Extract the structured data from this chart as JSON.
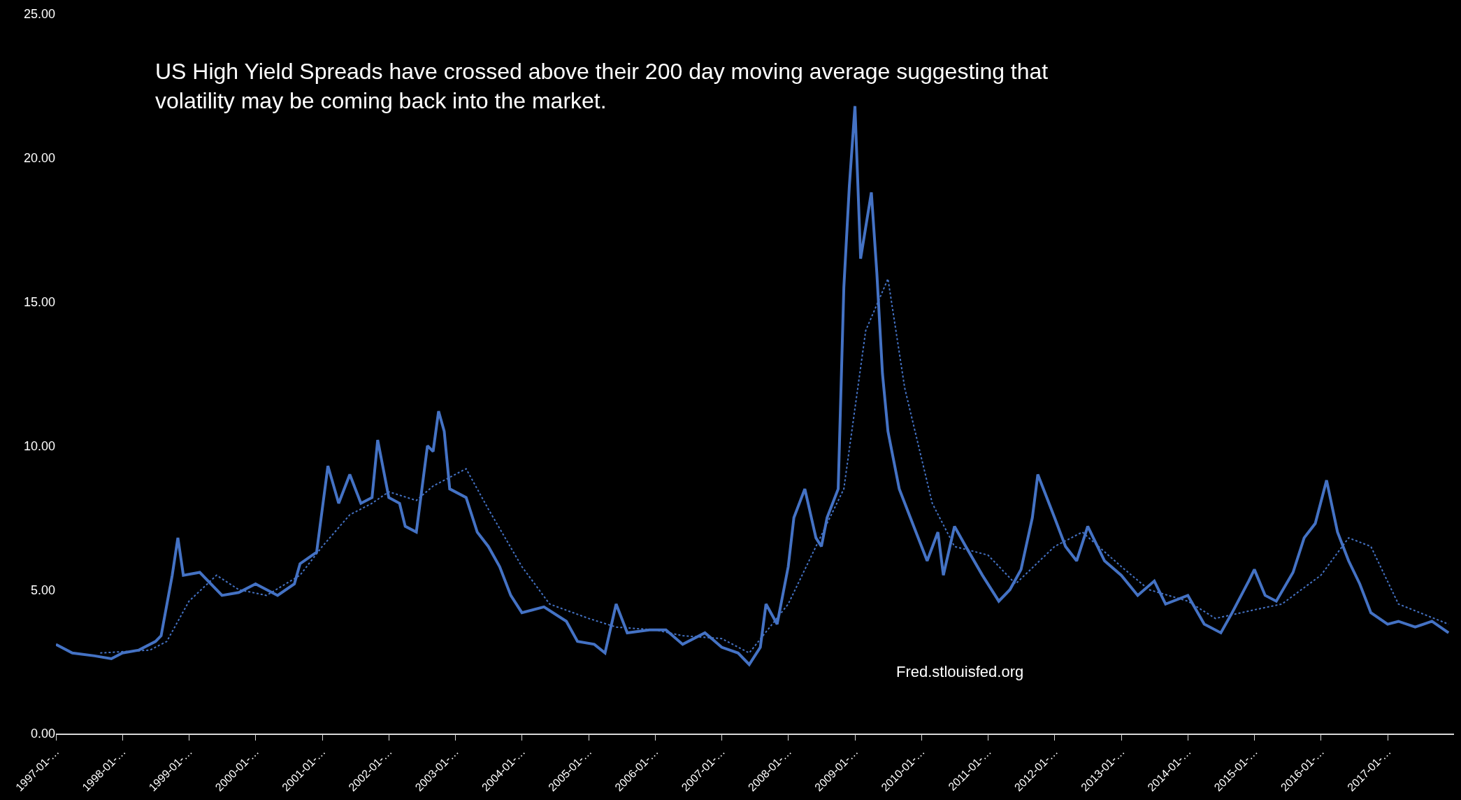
{
  "chart_data": {
    "type": "line",
    "annotations": [
      "US High Yield Spreads have crossed above their 200 day moving average suggesting that\nvolatility may be coming back into the market.",
      "Fred.stlouisfed.org"
    ],
    "series": [
      {
        "color": "#4472c4",
        "line_style": "solid",
        "x": [
          "1997-01",
          "1997-04",
          "1997-08",
          "1997-11",
          "1998-01",
          "1998-04",
          "1998-07",
          "1998-08",
          "1998-10",
          "1998-11",
          "1998-12",
          "1999-03",
          "1999-07",
          "1999-10",
          "2000-01",
          "2000-05",
          "2000-08",
          "2000-09",
          "2000-12",
          "2001-01",
          "2001-02",
          "2001-04",
          "2001-06",
          "2001-08",
          "2001-10",
          "2001-11",
          "2002-01",
          "2002-03",
          "2002-04",
          "2002-06",
          "2002-08",
          "2002-09",
          "2002-10",
          "2002-11",
          "2002-12",
          "2003-03",
          "2003-05",
          "2003-07",
          "2003-09",
          "2003-11",
          "2004-01",
          "2004-05",
          "2004-09",
          "2004-11",
          "2005-02",
          "2005-04",
          "2005-06",
          "2005-08",
          "2005-12",
          "2006-03",
          "2006-06",
          "2006-10",
          "2007-01",
          "2007-04",
          "2007-06",
          "2007-08",
          "2007-09",
          "2007-11",
          "2008-01",
          "2008-02",
          "2008-04",
          "2008-06",
          "2008-07",
          "2008-08",
          "2008-10",
          "2008-11",
          "2008-12",
          "2009-01",
          "2009-02",
          "2009-04",
          "2009-05",
          "2009-06",
          "2009-07",
          "2009-09",
          "2009-11",
          "2010-02",
          "2010-04",
          "2010-05",
          "2010-07",
          "2010-09",
          "2010-12",
          "2011-03",
          "2011-05",
          "2011-07",
          "2011-09",
          "2011-10",
          "2012-01",
          "2012-03",
          "2012-05",
          "2012-07",
          "2012-10",
          "2013-01",
          "2013-04",
          "2013-07",
          "2013-09",
          "2014-01",
          "2014-04",
          "2014-07",
          "2014-09",
          "2014-12",
          "2015-01",
          "2015-03",
          "2015-05",
          "2015-08",
          "2015-10",
          "2015-12",
          "2016-02",
          "2016-04",
          "2016-06",
          "2016-08",
          "2016-10",
          "2017-01",
          "2017-03",
          "2017-06",
          "2017-09",
          "2017-12"
        ],
        "values": [
          3.1,
          2.8,
          2.7,
          2.6,
          2.8,
          2.9,
          3.2,
          3.4,
          5.5,
          6.8,
          5.5,
          5.6,
          4.8,
          4.9,
          5.2,
          4.8,
          5.2,
          5.9,
          6.3,
          7.8,
          9.3,
          8.0,
          9.0,
          8.0,
          8.2,
          10.2,
          8.2,
          8.0,
          7.2,
          7.0,
          10.0,
          9.8,
          11.2,
          10.5,
          8.5,
          8.2,
          7.0,
          6.5,
          5.8,
          4.8,
          4.2,
          4.4,
          3.9,
          3.2,
          3.1,
          2.8,
          4.5,
          3.5,
          3.6,
          3.6,
          3.1,
          3.5,
          3.0,
          2.8,
          2.4,
          3.0,
          4.5,
          3.8,
          5.8,
          7.5,
          8.5,
          6.8,
          6.5,
          7.5,
          8.5,
          15.5,
          19.0,
          21.8,
          16.5,
          18.8,
          16.0,
          12.5,
          10.5,
          8.5,
          7.5,
          6.0,
          7.0,
          5.5,
          7.2,
          6.5,
          5.5,
          4.6,
          5.0,
          5.7,
          7.5,
          9.0,
          7.5,
          6.5,
          6.0,
          7.2,
          6.0,
          5.5,
          4.8,
          5.3,
          4.5,
          4.8,
          3.8,
          3.5,
          4.2,
          5.3,
          5.7,
          4.8,
          4.6,
          5.6,
          6.8,
          7.3,
          8.8,
          7.0,
          6.0,
          5.2,
          4.2,
          3.8,
          3.9,
          3.7,
          3.9,
          3.5
        ]
      },
      {
        "color": "#4472c4",
        "line_style": "dotted",
        "x": [
          "1997-09",
          "1998-06",
          "1998-09",
          "1999-01",
          "1999-06",
          "1999-10",
          "2000-03",
          "2000-09",
          "2001-01",
          "2001-06",
          "2001-10",
          "2002-01",
          "2002-06",
          "2002-09",
          "2003-03",
          "2003-07",
          "2004-01",
          "2004-06",
          "2005-01",
          "2005-06",
          "2006-01",
          "2006-06",
          "2007-01",
          "2007-06",
          "2008-01",
          "2008-06",
          "2008-11",
          "2009-03",
          "2009-07",
          "2009-10",
          "2010-03",
          "2010-07",
          "2011-01",
          "2011-06",
          "2012-01",
          "2012-06",
          "2013-01",
          "2013-06",
          "2014-01",
          "2014-06",
          "2015-01",
          "2015-06",
          "2016-01",
          "2016-06",
          "2016-10",
          "2017-03",
          "2017-12"
        ],
        "values": [
          2.8,
          2.9,
          3.2,
          4.6,
          5.5,
          5.0,
          4.8,
          5.5,
          6.5,
          7.6,
          8.0,
          8.4,
          8.1,
          8.6,
          9.2,
          7.8,
          5.8,
          4.5,
          4.0,
          3.7,
          3.6,
          3.4,
          3.3,
          2.8,
          4.5,
          6.5,
          8.5,
          14.0,
          15.8,
          12.0,
          8.0,
          6.5,
          6.2,
          5.2,
          6.5,
          7.0,
          5.8,
          5.0,
          4.6,
          4.0,
          4.3,
          4.5,
          5.5,
          6.8,
          6.5,
          4.5,
          3.8
        ]
      }
    ],
    "ylim": [
      0,
      25
    ],
    "yticks": [
      {
        "value": 0,
        "label": "0.00"
      },
      {
        "value": 5,
        "label": "5.00"
      },
      {
        "value": 10,
        "label": "10.00"
      },
      {
        "value": 15,
        "label": "15.00"
      },
      {
        "value": 20,
        "label": "20.00"
      },
      {
        "value": 25,
        "label": "25.00"
      }
    ],
    "xlim": [
      "1997-01-01",
      "2017-12-31"
    ],
    "xticks": [
      {
        "value": "1997-01-01",
        "label": "1997-01-…"
      },
      {
        "value": "1998-01-01",
        "label": "1998-01-…"
      },
      {
        "value": "1999-01-01",
        "label": "1999-01-…"
      },
      {
        "value": "2000-01-01",
        "label": "2000-01-…"
      },
      {
        "value": "2001-01-01",
        "label": "2001-01-…"
      },
      {
        "value": "2002-01-01",
        "label": "2002-01-…"
      },
      {
        "value": "2003-01-01",
        "label": "2003-01-…"
      },
      {
        "value": "2004-01-01",
        "label": "2004-01-…"
      },
      {
        "value": "2005-01-01",
        "label": "2005-01-…"
      },
      {
        "value": "2006-01-01",
        "label": "2006-01-…"
      },
      {
        "value": "2007-01-01",
        "label": "2007-01-…"
      },
      {
        "value": "2008-01-01",
        "label": "2008-01-…"
      },
      {
        "value": "2009-01-01",
        "label": "2009-01-…"
      },
      {
        "value": "2010-01-01",
        "label": "2010-01-…"
      },
      {
        "value": "2011-01-01",
        "label": "2011-01-…"
      },
      {
        "value": "2012-01-01",
        "label": "2012-01-…"
      },
      {
        "value": "2013-01-01",
        "label": "2013-01-…"
      },
      {
        "value": "2014-01-01",
        "label": "2014-01-…"
      },
      {
        "value": "2015-01-01",
        "label": "2015-01-…"
      },
      {
        "value": "2016-01-01",
        "label": "2016-01-…"
      },
      {
        "value": "2017-01-01",
        "label": "2017-01-…"
      }
    ]
  }
}
